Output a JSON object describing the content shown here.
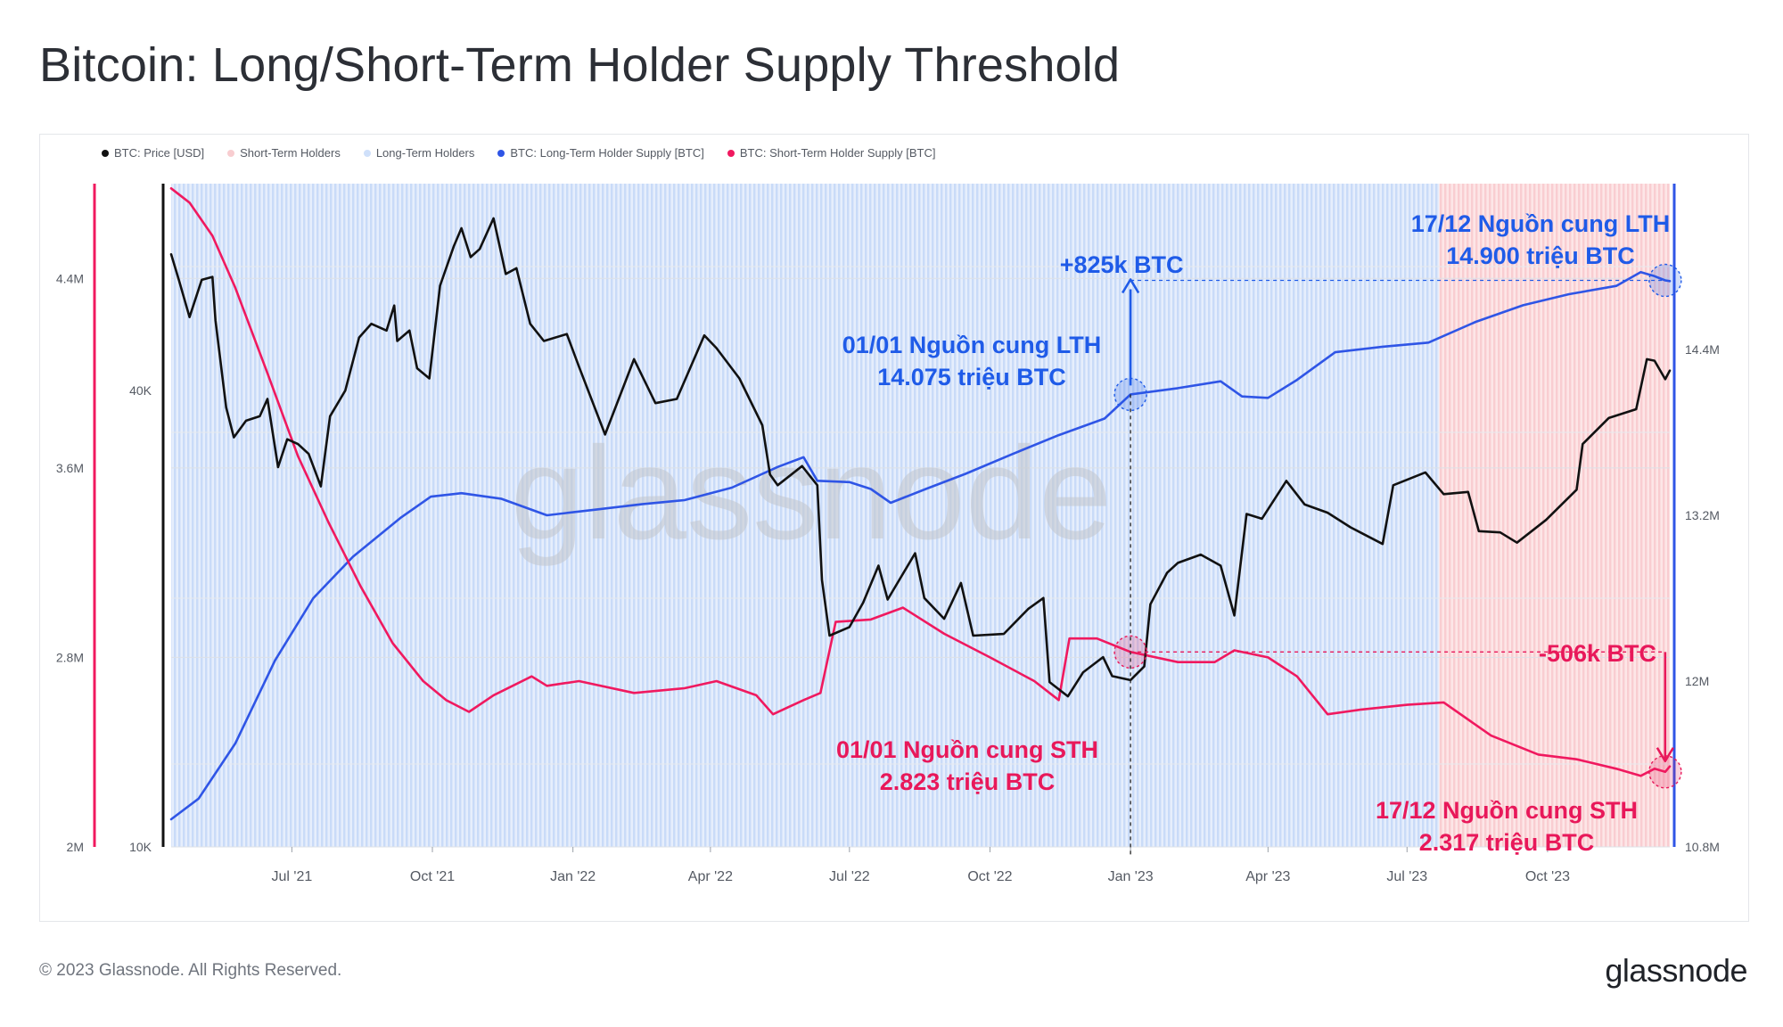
{
  "title": "Bitcoin: Long/Short-Term Holder Supply Threshold",
  "footer": {
    "copyright": "© 2023 Glassnode. All Rights Reserved.",
    "logo": "glassnode"
  },
  "watermark": "glassnode",
  "colors": {
    "price": "#111111",
    "lth_line": "#2f55e6",
    "sth_line": "#f0195f",
    "lth_area": "#cfe0fa",
    "sth_area": "#fbd3d6",
    "lth_annotation": "#1f5be8",
    "sth_annotation": "#e8185a"
  },
  "chart_data": {
    "type": "line",
    "title": "Bitcoin: Long/Short-Term Holder Supply Threshold",
    "legend": [
      {
        "name": "BTC: Price [USD]",
        "color": "#111111"
      },
      {
        "name": "Short-Term Holders",
        "color": "#f8cdd0"
      },
      {
        "name": "Long-Term Holders",
        "color": "#cfe0fa"
      },
      {
        "name": "BTC: Long-Term Holder Supply [BTC]",
        "color": "#2f55e6"
      },
      {
        "name": "BTC: Short-Term Holder Supply [BTC]",
        "color": "#f0195f"
      }
    ],
    "legend_position": "top-left",
    "x_range": [
      "2021-04-13",
      "2023-12-20"
    ],
    "x_ticks": [
      {
        "date": "2021-07-01",
        "label": "Jul '21"
      },
      {
        "date": "2021-10-01",
        "label": "Oct '21"
      },
      {
        "date": "2022-01-01",
        "label": "Jan '22"
      },
      {
        "date": "2022-04-01",
        "label": "Apr '22"
      },
      {
        "date": "2022-07-01",
        "label": "Jul '22"
      },
      {
        "date": "2022-10-01",
        "label": "Oct '22"
      },
      {
        "date": "2023-01-01",
        "label": "Jan '23"
      },
      {
        "date": "2023-04-01",
        "label": "Apr '23"
      },
      {
        "date": "2023-07-01",
        "label": "Jul '23"
      },
      {
        "date": "2023-10-01",
        "label": "Oct '23"
      }
    ],
    "axes": {
      "sth_axis": {
        "scale": "linear",
        "range": [
          2000000,
          4800000
        ],
        "ticks": [
          {
            "value": 2000000,
            "label": "2M"
          },
          {
            "value": 2800000,
            "label": "2.8M"
          },
          {
            "value": 3600000,
            "label": "3.6M"
          },
          {
            "value": 4400000,
            "label": "4.4M"
          }
        ]
      },
      "price_axis": {
        "scale": "log",
        "range": [
          10000,
          75000
        ],
        "ticks": [
          {
            "value": 10000,
            "label": "10K"
          },
          {
            "value": 40000,
            "label": "40K"
          }
        ]
      },
      "lth_axis": {
        "scale": "linear",
        "range": [
          10800000,
          15600000
        ],
        "ticks": [
          {
            "value": 10800000,
            "label": "10.8M"
          },
          {
            "value": 12000000,
            "label": "12M"
          },
          {
            "value": 13200000,
            "label": "13.2M"
          },
          {
            "value": 14400000,
            "label": "14.4M"
          }
        ]
      }
    },
    "grid": true,
    "background_regions": [
      {
        "from": "2021-04-13",
        "to": "2023-07-22",
        "state": "Long-Term Holders"
      },
      {
        "from": "2023-07-22",
        "to": "2023-12-20",
        "state": "Short-Term Holders"
      }
    ],
    "series": [
      {
        "name": "BTC: Price [USD]",
        "axis": "price_axis",
        "points": [
          [
            "2021-04-13",
            60500
          ],
          [
            "2021-04-18",
            56000
          ],
          [
            "2021-04-25",
            50000
          ],
          [
            "2021-05-03",
            56000
          ],
          [
            "2021-05-10",
            56500
          ],
          [
            "2021-05-12",
            49500
          ],
          [
            "2021-05-19",
            38000
          ],
          [
            "2021-05-24",
            34700
          ],
          [
            "2021-06-01",
            36500
          ],
          [
            "2021-06-10",
            37000
          ],
          [
            "2021-06-15",
            39000
          ],
          [
            "2021-06-22",
            31700
          ],
          [
            "2021-06-28",
            34500
          ],
          [
            "2021-07-05",
            34000
          ],
          [
            "2021-07-12",
            33000
          ],
          [
            "2021-07-20",
            29900
          ],
          [
            "2021-07-26",
            37000
          ],
          [
            "2021-08-05",
            40000
          ],
          [
            "2021-08-14",
            47000
          ],
          [
            "2021-08-22",
            49000
          ],
          [
            "2021-09-01",
            48000
          ],
          [
            "2021-09-06",
            51800
          ],
          [
            "2021-09-08",
            46500
          ],
          [
            "2021-09-16",
            48000
          ],
          [
            "2021-09-21",
            42800
          ],
          [
            "2021-09-29",
            41500
          ],
          [
            "2021-10-06",
            55000
          ],
          [
            "2021-10-15",
            62000
          ],
          [
            "2021-10-20",
            65500
          ],
          [
            "2021-10-26",
            60000
          ],
          [
            "2021-11-01",
            61500
          ],
          [
            "2021-11-10",
            67500
          ],
          [
            "2021-11-18",
            57000
          ],
          [
            "2021-11-25",
            58000
          ],
          [
            "2021-12-04",
            49000
          ],
          [
            "2021-12-13",
            46500
          ],
          [
            "2021-12-28",
            47500
          ],
          [
            "2022-01-05",
            43000
          ],
          [
            "2022-01-22",
            35000
          ],
          [
            "2022-02-10",
            44000
          ],
          [
            "2022-02-24",
            38500
          ],
          [
            "2022-03-10",
            39000
          ],
          [
            "2022-03-28",
            47300
          ],
          [
            "2022-04-05",
            45500
          ],
          [
            "2022-04-20",
            41500
          ],
          [
            "2022-05-05",
            36000
          ],
          [
            "2022-05-10",
            31000
          ],
          [
            "2022-05-15",
            30000
          ],
          [
            "2022-05-31",
            31800
          ],
          [
            "2022-06-10",
            30000
          ],
          [
            "2022-06-13",
            22500
          ],
          [
            "2022-06-18",
            19000
          ],
          [
            "2022-07-01",
            19500
          ],
          [
            "2022-07-10",
            21000
          ],
          [
            "2022-07-20",
            23500
          ],
          [
            "2022-07-26",
            21200
          ],
          [
            "2022-08-13",
            24400
          ],
          [
            "2022-08-19",
            21300
          ],
          [
            "2022-09-01",
            20000
          ],
          [
            "2022-09-12",
            22300
          ],
          [
            "2022-09-20",
            19000
          ],
          [
            "2022-10-10",
            19100
          ],
          [
            "2022-10-26",
            20600
          ],
          [
            "2022-11-05",
            21300
          ],
          [
            "2022-11-09",
            16500
          ],
          [
            "2022-11-21",
            15800
          ],
          [
            "2022-12-01",
            17000
          ],
          [
            "2022-12-14",
            17800
          ],
          [
            "2022-12-20",
            16800
          ],
          [
            "2023-01-01",
            16600
          ],
          [
            "2023-01-10",
            17300
          ],
          [
            "2023-01-14",
            20900
          ],
          [
            "2023-01-25",
            23000
          ],
          [
            "2023-02-01",
            23700
          ],
          [
            "2023-02-16",
            24300
          ],
          [
            "2023-03-01",
            23500
          ],
          [
            "2023-03-10",
            20200
          ],
          [
            "2023-03-18",
            27500
          ],
          [
            "2023-03-28",
            27100
          ],
          [
            "2023-04-13",
            30400
          ],
          [
            "2023-04-25",
            28300
          ],
          [
            "2023-05-10",
            27600
          ],
          [
            "2023-05-25",
            26400
          ],
          [
            "2023-06-15",
            25100
          ],
          [
            "2023-06-22",
            30000
          ],
          [
            "2023-07-13",
            31200
          ],
          [
            "2023-07-25",
            29200
          ],
          [
            "2023-08-10",
            29400
          ],
          [
            "2023-08-17",
            26100
          ],
          [
            "2023-08-31",
            26000
          ],
          [
            "2023-09-11",
            25200
          ],
          [
            "2023-09-30",
            27000
          ],
          [
            "2023-10-20",
            29600
          ],
          [
            "2023-10-24",
            34000
          ],
          [
            "2023-11-10",
            36800
          ],
          [
            "2023-11-28",
            37800
          ],
          [
            "2023-12-05",
            44000
          ],
          [
            "2023-12-10",
            43800
          ],
          [
            "2023-12-17",
            41400
          ],
          [
            "2023-12-20",
            42500
          ]
        ]
      },
      {
        "name": "BTC: Long-Term Holder Supply [BTC]",
        "axis": "lth_axis",
        "points": [
          [
            "2021-04-13",
            11000000
          ],
          [
            "2021-05-01",
            11150000
          ],
          [
            "2021-05-25",
            11550000
          ],
          [
            "2021-06-20",
            12150000
          ],
          [
            "2021-07-15",
            12600000
          ],
          [
            "2021-08-10",
            12900000
          ],
          [
            "2021-09-10",
            13180000
          ],
          [
            "2021-09-30",
            13335000
          ],
          [
            "2021-10-20",
            13360000
          ],
          [
            "2021-11-15",
            13320000
          ],
          [
            "2021-12-15",
            13200000
          ],
          [
            "2022-01-15",
            13240000
          ],
          [
            "2022-02-15",
            13280000
          ],
          [
            "2022-03-15",
            13310000
          ],
          [
            "2022-04-15",
            13400000
          ],
          [
            "2022-05-15",
            13550000
          ],
          [
            "2022-06-01",
            13620000
          ],
          [
            "2022-06-10",
            13450000
          ],
          [
            "2022-07-01",
            13440000
          ],
          [
            "2022-07-15",
            13390000
          ],
          [
            "2022-07-28",
            13290000
          ],
          [
            "2022-08-20",
            13390000
          ],
          [
            "2022-09-15",
            13500000
          ],
          [
            "2022-10-15",
            13640000
          ],
          [
            "2022-11-15",
            13780000
          ],
          [
            "2022-12-15",
            13900000
          ],
          [
            "2023-01-01",
            14075000
          ],
          [
            "2023-02-01",
            14120000
          ],
          [
            "2023-03-01",
            14170000
          ],
          [
            "2023-03-15",
            14060000
          ],
          [
            "2023-04-01",
            14050000
          ],
          [
            "2023-04-20",
            14180000
          ],
          [
            "2023-05-15",
            14380000
          ],
          [
            "2023-06-15",
            14420000
          ],
          [
            "2023-07-15",
            14450000
          ],
          [
            "2023-08-15",
            14600000
          ],
          [
            "2023-09-15",
            14720000
          ],
          [
            "2023-10-15",
            14800000
          ],
          [
            "2023-11-15",
            14860000
          ],
          [
            "2023-12-01",
            14960000
          ],
          [
            "2023-12-10",
            14930000
          ],
          [
            "2023-12-17",
            14900000
          ],
          [
            "2023-12-20",
            14895000
          ]
        ]
      },
      {
        "name": "BTC: Short-Term Holder Supply [BTC]",
        "axis": "sth_axis",
        "points": [
          [
            "2021-04-13",
            4780000
          ],
          [
            "2021-04-25",
            4720000
          ],
          [
            "2021-05-10",
            4580000
          ],
          [
            "2021-05-25",
            4360000
          ],
          [
            "2021-06-15",
            4000000
          ],
          [
            "2021-07-05",
            3650000
          ],
          [
            "2021-07-25",
            3370000
          ],
          [
            "2021-08-15",
            3100000
          ],
          [
            "2021-09-05",
            2860000
          ],
          [
            "2021-09-25",
            2700000
          ],
          [
            "2021-10-10",
            2620000
          ],
          [
            "2021-10-25",
            2570000
          ],
          [
            "2021-11-10",
            2640000
          ],
          [
            "2021-12-05",
            2720000
          ],
          [
            "2021-12-15",
            2680000
          ],
          [
            "2022-01-05",
            2700000
          ],
          [
            "2022-02-10",
            2650000
          ],
          [
            "2022-03-15",
            2670000
          ],
          [
            "2022-04-05",
            2700000
          ],
          [
            "2022-05-01",
            2640000
          ],
          [
            "2022-05-12",
            2560000
          ],
          [
            "2022-06-01",
            2620000
          ],
          [
            "2022-06-12",
            2650000
          ],
          [
            "2022-06-22",
            2950000
          ],
          [
            "2022-07-15",
            2960000
          ],
          [
            "2022-08-05",
            3010000
          ],
          [
            "2022-09-01",
            2900000
          ],
          [
            "2022-10-01",
            2800000
          ],
          [
            "2022-10-30",
            2700000
          ],
          [
            "2022-11-15",
            2620000
          ],
          [
            "2022-11-22",
            2880000
          ],
          [
            "2022-12-10",
            2880000
          ],
          [
            "2023-01-01",
            2823000
          ],
          [
            "2023-02-01",
            2780000
          ],
          [
            "2023-02-25",
            2780000
          ],
          [
            "2023-03-10",
            2830000
          ],
          [
            "2023-04-01",
            2800000
          ],
          [
            "2023-04-20",
            2720000
          ],
          [
            "2023-05-10",
            2560000
          ],
          [
            "2023-06-01",
            2580000
          ],
          [
            "2023-07-01",
            2600000
          ],
          [
            "2023-07-25",
            2610000
          ],
          [
            "2023-08-25",
            2470000
          ],
          [
            "2023-09-25",
            2390000
          ],
          [
            "2023-10-20",
            2370000
          ],
          [
            "2023-11-15",
            2330000
          ],
          [
            "2023-12-01",
            2300000
          ],
          [
            "2023-12-10",
            2330000
          ],
          [
            "2023-12-17",
            2317000
          ],
          [
            "2023-12-20",
            2340000
          ]
        ]
      }
    ],
    "annotations": [
      {
        "id": "lth_start",
        "date": "2023-01-01",
        "value": 14075000,
        "axis": "lth_axis",
        "lines": [
          "01/01 Nguồn cung LTH",
          "14.075 triệu BTC"
        ]
      },
      {
        "id": "lth_change",
        "text": "+825k BTC"
      },
      {
        "id": "lth_end",
        "date": "2023-12-17",
        "value": 14900000,
        "axis": "lth_axis",
        "lines": [
          "17/12 Nguồn cung LTH",
          "14.900 triệu BTC"
        ]
      },
      {
        "id": "sth_start",
        "date": "2023-01-01",
        "value": 2823000,
        "axis": "sth_axis",
        "lines": [
          "01/01 Nguồn cung STH",
          "2.823 triệu BTC"
        ]
      },
      {
        "id": "sth_change",
        "text": "-506k BTC"
      },
      {
        "id": "sth_end",
        "date": "2023-12-17",
        "value": 2317000,
        "axis": "sth_axis",
        "lines": [
          "17/12 Nguồn cung STH",
          "2.317 triệu BTC"
        ]
      }
    ]
  }
}
